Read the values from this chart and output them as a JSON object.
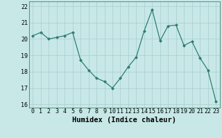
{
  "xlabel": "Humidex (Indice chaleur)",
  "x": [
    0,
    1,
    2,
    3,
    4,
    5,
    6,
    7,
    8,
    9,
    10,
    11,
    12,
    13,
    14,
    15,
    16,
    17,
    18,
    19,
    20,
    21,
    22,
    23
  ],
  "y": [
    20.2,
    20.4,
    20.0,
    20.1,
    20.2,
    20.4,
    18.7,
    18.1,
    17.6,
    17.4,
    17.0,
    17.6,
    18.3,
    18.9,
    20.5,
    21.8,
    19.9,
    20.8,
    20.85,
    19.6,
    19.85,
    18.85,
    18.1,
    16.2
  ],
  "line_color": "#2d7d6e",
  "marker_color": "#2d7d6e",
  "bg_color": "#c8e8e8",
  "grid_color": "#a8cccc",
  "ylim": [
    15.8,
    22.3
  ],
  "yticks": [
    16,
    17,
    18,
    19,
    20,
    21,
    22
  ],
  "xlim": [
    -0.5,
    23.5
  ],
  "xticks": [
    0,
    1,
    2,
    3,
    4,
    5,
    6,
    7,
    8,
    9,
    10,
    11,
    12,
    13,
    14,
    15,
    16,
    17,
    18,
    19,
    20,
    21,
    22,
    23
  ],
  "tick_fontsize": 6,
  "label_fontsize": 7.5
}
